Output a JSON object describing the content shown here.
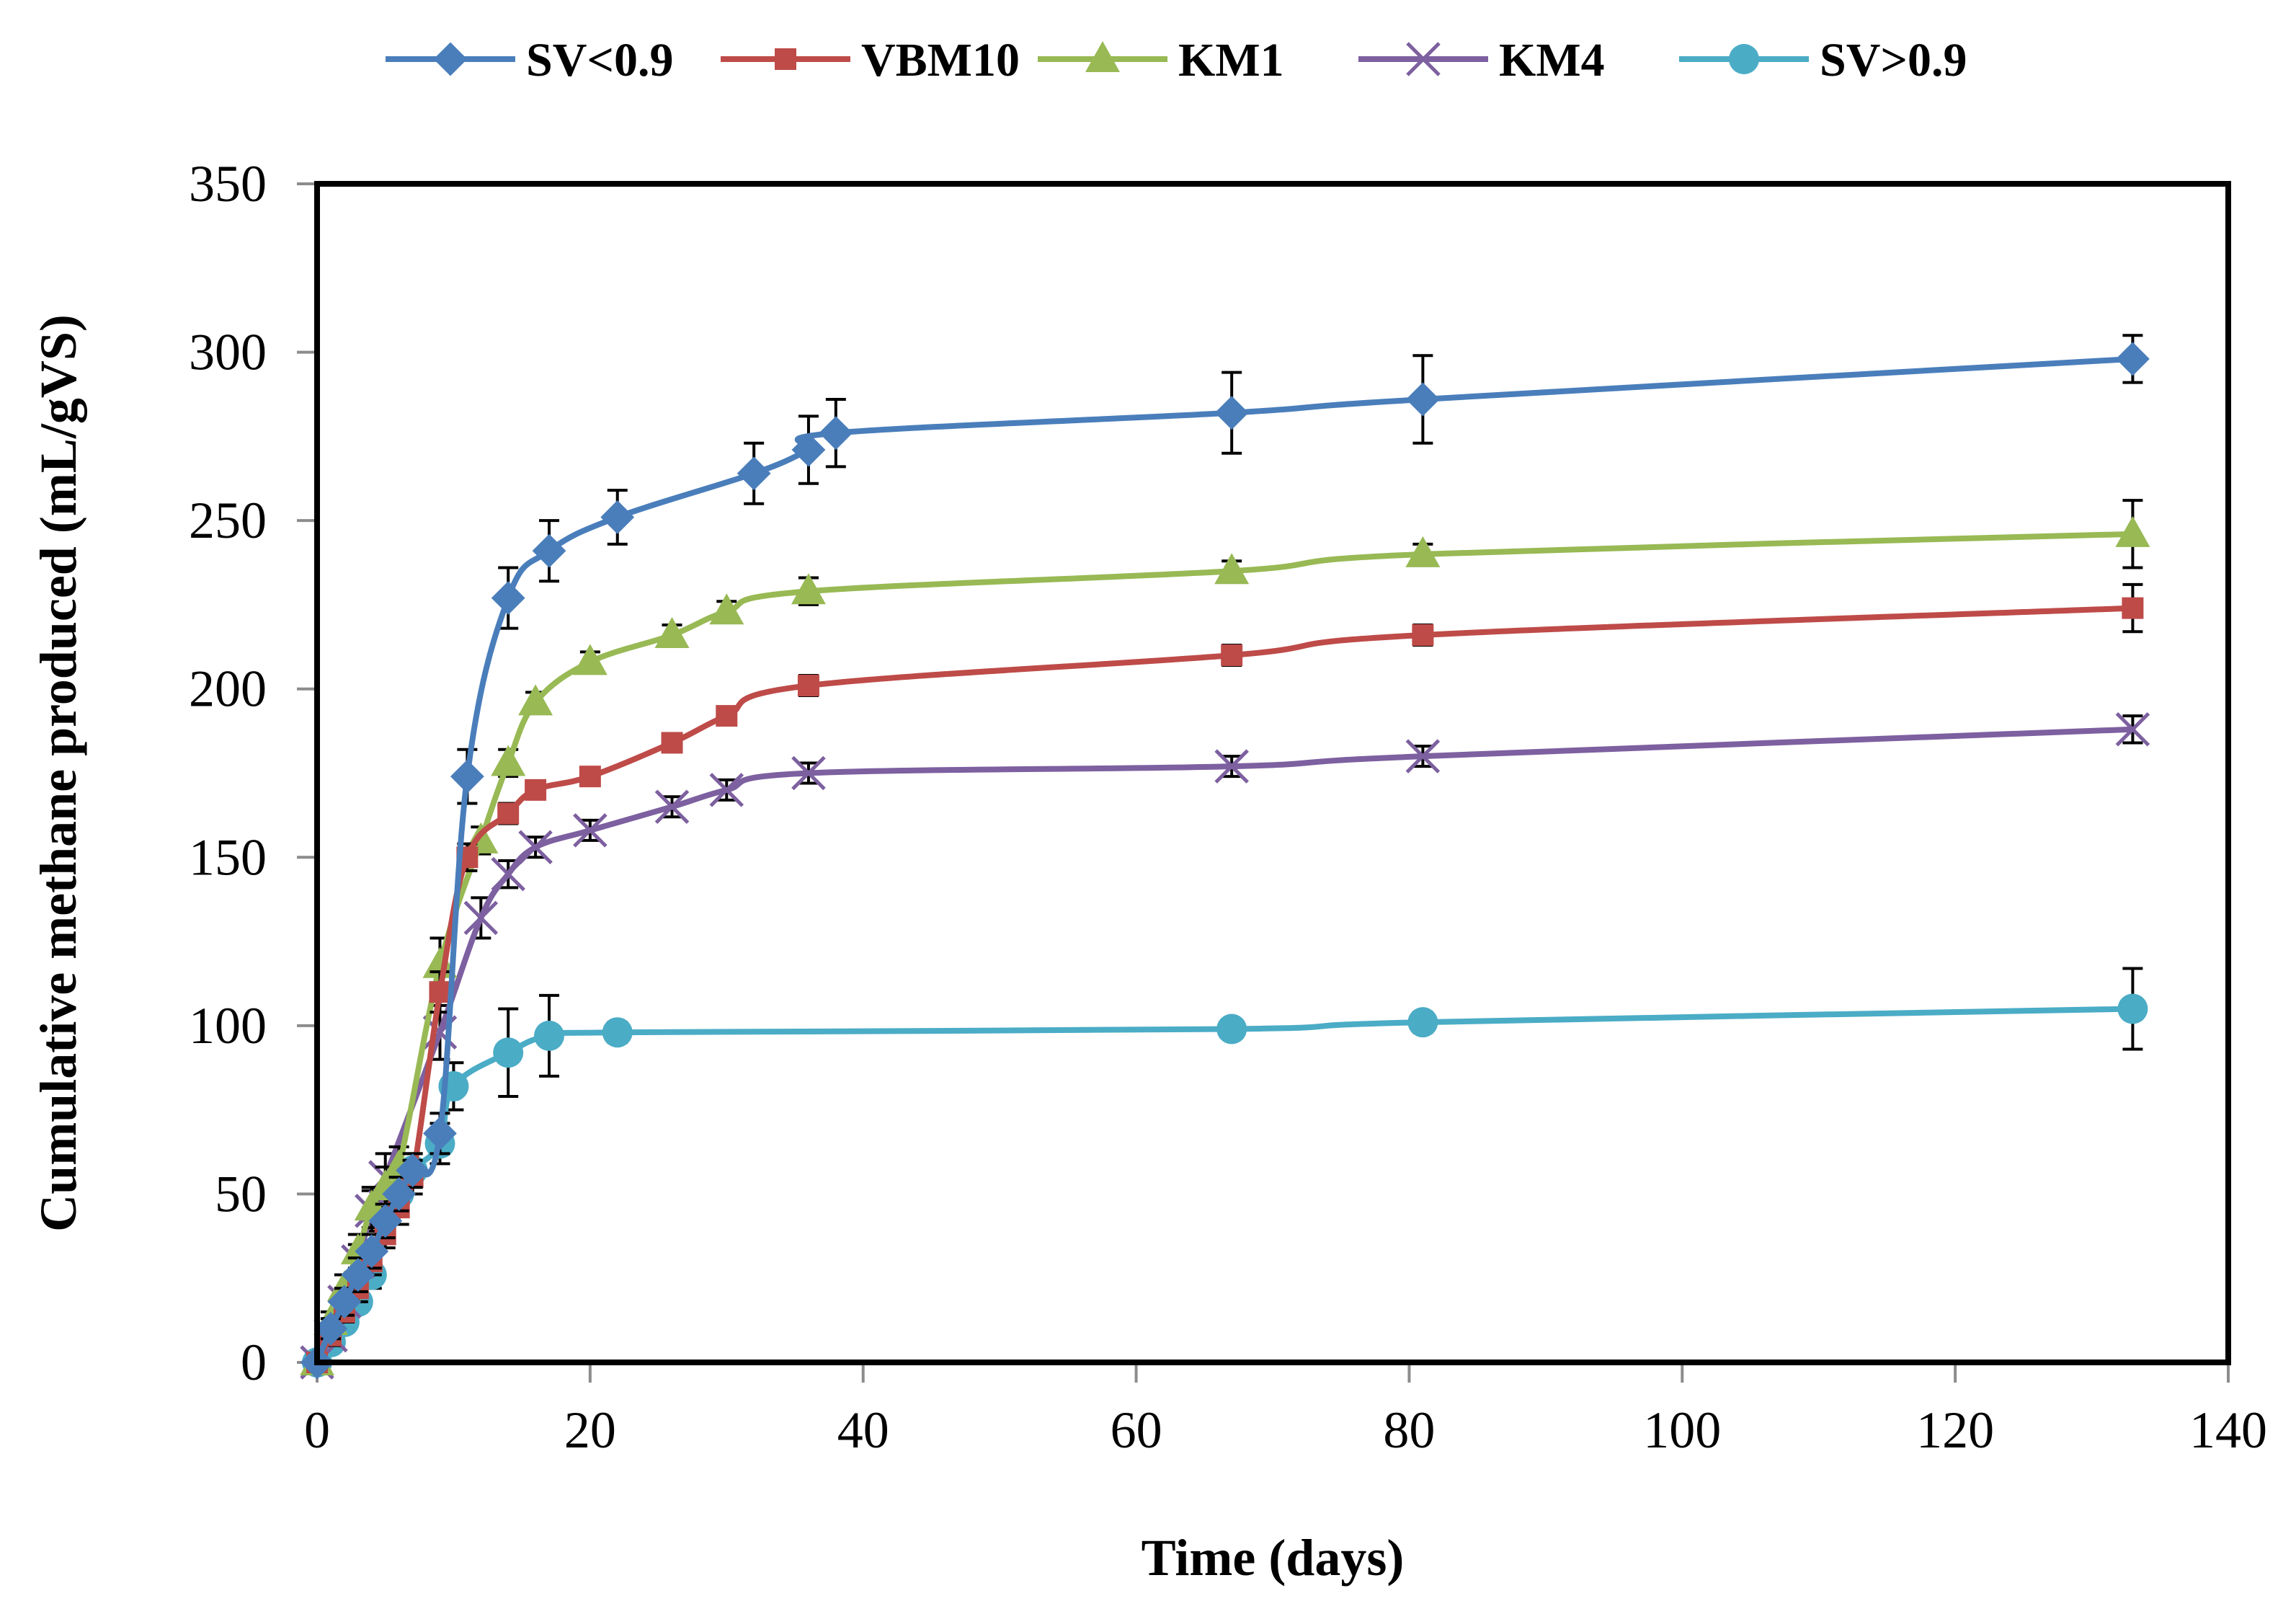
{
  "chart_data": {
    "type": "line",
    "title": "",
    "xlabel": "Time (days)",
    "ylabel": "Cumulative methane produced (mL/gVS)",
    "xlim": [
      0,
      140
    ],
    "ylim": [
      0,
      350
    ],
    "xticks": [
      0,
      20,
      40,
      60,
      80,
      100,
      120,
      140
    ],
    "yticks": [
      0,
      50,
      100,
      150,
      200,
      250,
      300,
      350
    ],
    "grid": false,
    "legend_position": "top",
    "series": [
      {
        "name": "SV<0.9",
        "color": "#4A7EBB",
        "marker": "diamond",
        "x": [
          0,
          1,
          2,
          3,
          4,
          5,
          6,
          7,
          9,
          11,
          14,
          17,
          22,
          32,
          36,
          38,
          67,
          81,
          133
        ],
        "y": [
          0,
          10,
          18,
          26,
          33,
          42,
          50,
          57,
          68,
          174,
          227,
          241,
          251,
          264,
          271,
          276,
          282,
          286,
          298
        ],
        "err": [
          0,
          3,
          4,
          5,
          5,
          5,
          5,
          5,
          6,
          8,
          9,
          9,
          8,
          9,
          10,
          10,
          12,
          13,
          7
        ]
      },
      {
        "name": "VBM10",
        "color": "#BE4B48",
        "marker": "square",
        "x": [
          0,
          1,
          2,
          3,
          4,
          5,
          6,
          7,
          9,
          11,
          14,
          16,
          20,
          26,
          30,
          36,
          67,
          81,
          133
        ],
        "y": [
          0,
          8,
          15,
          22,
          30,
          38,
          46,
          55,
          110,
          150,
          163,
          170,
          174,
          184,
          192,
          201,
          210,
          216,
          224
        ],
        "err": [
          0,
          3,
          3,
          4,
          4,
          4,
          5,
          5,
          6,
          4,
          3,
          2,
          2,
          2,
          2,
          3,
          3,
          3,
          7
        ]
      },
      {
        "name": "KM1",
        "color": "#98B954",
        "marker": "triangle",
        "x": [
          0,
          1,
          2,
          3,
          4,
          5,
          6,
          9,
          12,
          14,
          16,
          20,
          26,
          30,
          36,
          67,
          81,
          133
        ],
        "y": [
          0,
          12,
          22,
          33,
          46,
          52,
          58,
          118,
          155,
          178,
          196,
          208,
          216,
          223,
          229,
          235,
          240,
          246
        ],
        "err": [
          0,
          3,
          4,
          5,
          6,
          6,
          6,
          8,
          4,
          4,
          3,
          3,
          3,
          3,
          4,
          3,
          3,
          10
        ]
      },
      {
        "name": "KM4",
        "color": "#7D60A0",
        "marker": "x",
        "x": [
          0,
          1,
          2,
          3,
          4,
          5,
          9,
          12,
          14,
          16,
          20,
          26,
          30,
          36,
          67,
          81,
          133
        ],
        "y": [
          0,
          8,
          18,
          30,
          45,
          55,
          98,
          132,
          145,
          153,
          158,
          165,
          170,
          175,
          177,
          180,
          188
        ],
        "err": [
          0,
          3,
          4,
          5,
          6,
          7,
          8,
          6,
          4,
          3,
          3,
          3,
          3,
          3,
          3,
          3,
          4
        ]
      },
      {
        "name": "SV>0.9",
        "color": "#4BACC6",
        "marker": "circle",
        "x": [
          0,
          1,
          2,
          3,
          4,
          6,
          7,
          9,
          10,
          14,
          17,
          22,
          67,
          81,
          133
        ],
        "y": [
          0,
          6,
          12,
          18,
          26,
          50,
          57,
          65,
          82,
          92,
          97,
          98,
          99,
          101,
          105
        ],
        "err": [
          0,
          2,
          3,
          3,
          4,
          5,
          5,
          6,
          7,
          13,
          12,
          3,
          2,
          3,
          12
        ]
      }
    ]
  }
}
